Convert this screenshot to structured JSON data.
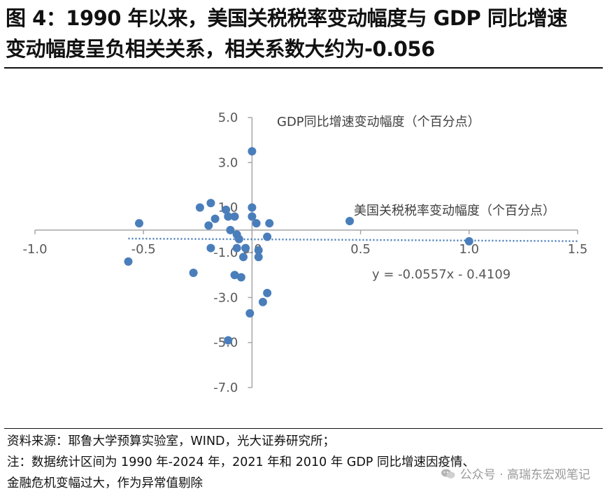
{
  "title": {
    "line1": "图 4：1990 年以来，美国关税税率变动幅度与 GDP 同比增速",
    "line2": "变动幅度呈负相关关系，相关系数大约为-0.056"
  },
  "chart_data": {
    "type": "scatter",
    "xlim": [
      -1.0,
      1.5
    ],
    "ylim": [
      -7.0,
      5.0
    ],
    "x_ticks": [
      "-1.0",
      "-0.5",
      "0.0",
      "0.5",
      "1.0",
      "1.5"
    ],
    "y_ticks": [
      "5.0",
      "3.0",
      "1.0",
      "-1.0",
      "-3.0",
      "-5.0",
      "-7.0"
    ],
    "xlabel": "美国关税税率变动幅度（个百分点）",
    "ylabel": "GDP同比增速变动幅度（个百分点）",
    "trendline": {
      "slope": -0.0557,
      "intercept": -0.4109,
      "label": "y = -0.0557x - 0.4109"
    },
    "series": [
      {
        "name": "变动幅度",
        "color": "#4a7ebb",
        "points": [
          [
            0.0,
            3.5
          ],
          [
            -0.24,
            1.0
          ],
          [
            -0.19,
            1.2
          ],
          [
            -0.12,
            0.9
          ],
          [
            0.0,
            1.0
          ],
          [
            -0.17,
            0.5
          ],
          [
            -0.11,
            0.6
          ],
          [
            -0.08,
            0.6
          ],
          [
            0.0,
            0.6
          ],
          [
            0.02,
            0.3
          ],
          [
            0.08,
            0.3
          ],
          [
            -0.2,
            0.2
          ],
          [
            -0.52,
            0.3
          ],
          [
            0.45,
            0.4
          ],
          [
            -0.1,
            0.0
          ],
          [
            -0.07,
            -0.2
          ],
          [
            -0.06,
            -0.4
          ],
          [
            0.07,
            -0.3
          ],
          [
            -0.19,
            -0.8
          ],
          [
            -0.07,
            -0.8
          ],
          [
            -0.03,
            -0.8
          ],
          [
            0.03,
            -0.9
          ],
          [
            -0.04,
            -1.2
          ],
          [
            0.03,
            -1.2
          ],
          [
            1.0,
            -0.5
          ],
          [
            -0.57,
            -1.4
          ],
          [
            -0.27,
            -1.9
          ],
          [
            -0.08,
            -2.0
          ],
          [
            -0.05,
            -2.1
          ],
          [
            0.07,
            -2.8
          ],
          [
            0.05,
            -3.2
          ],
          [
            -0.01,
            -3.7
          ],
          [
            -0.11,
            -4.9
          ]
        ]
      }
    ]
  },
  "notes": {
    "source": "资料来源：耶鲁大学预算实验室，WIND，光大证券研究所；",
    "note_line1": "注：数据统计区间为 1990 年-2024 年，2021 年和 2010 年 GDP 同比增速因疫情、",
    "note_line2": "金融危机变幅过大，作为异常值剔除"
  },
  "watermark": {
    "text": "公众号 · 高瑞东宏观笔记"
  }
}
